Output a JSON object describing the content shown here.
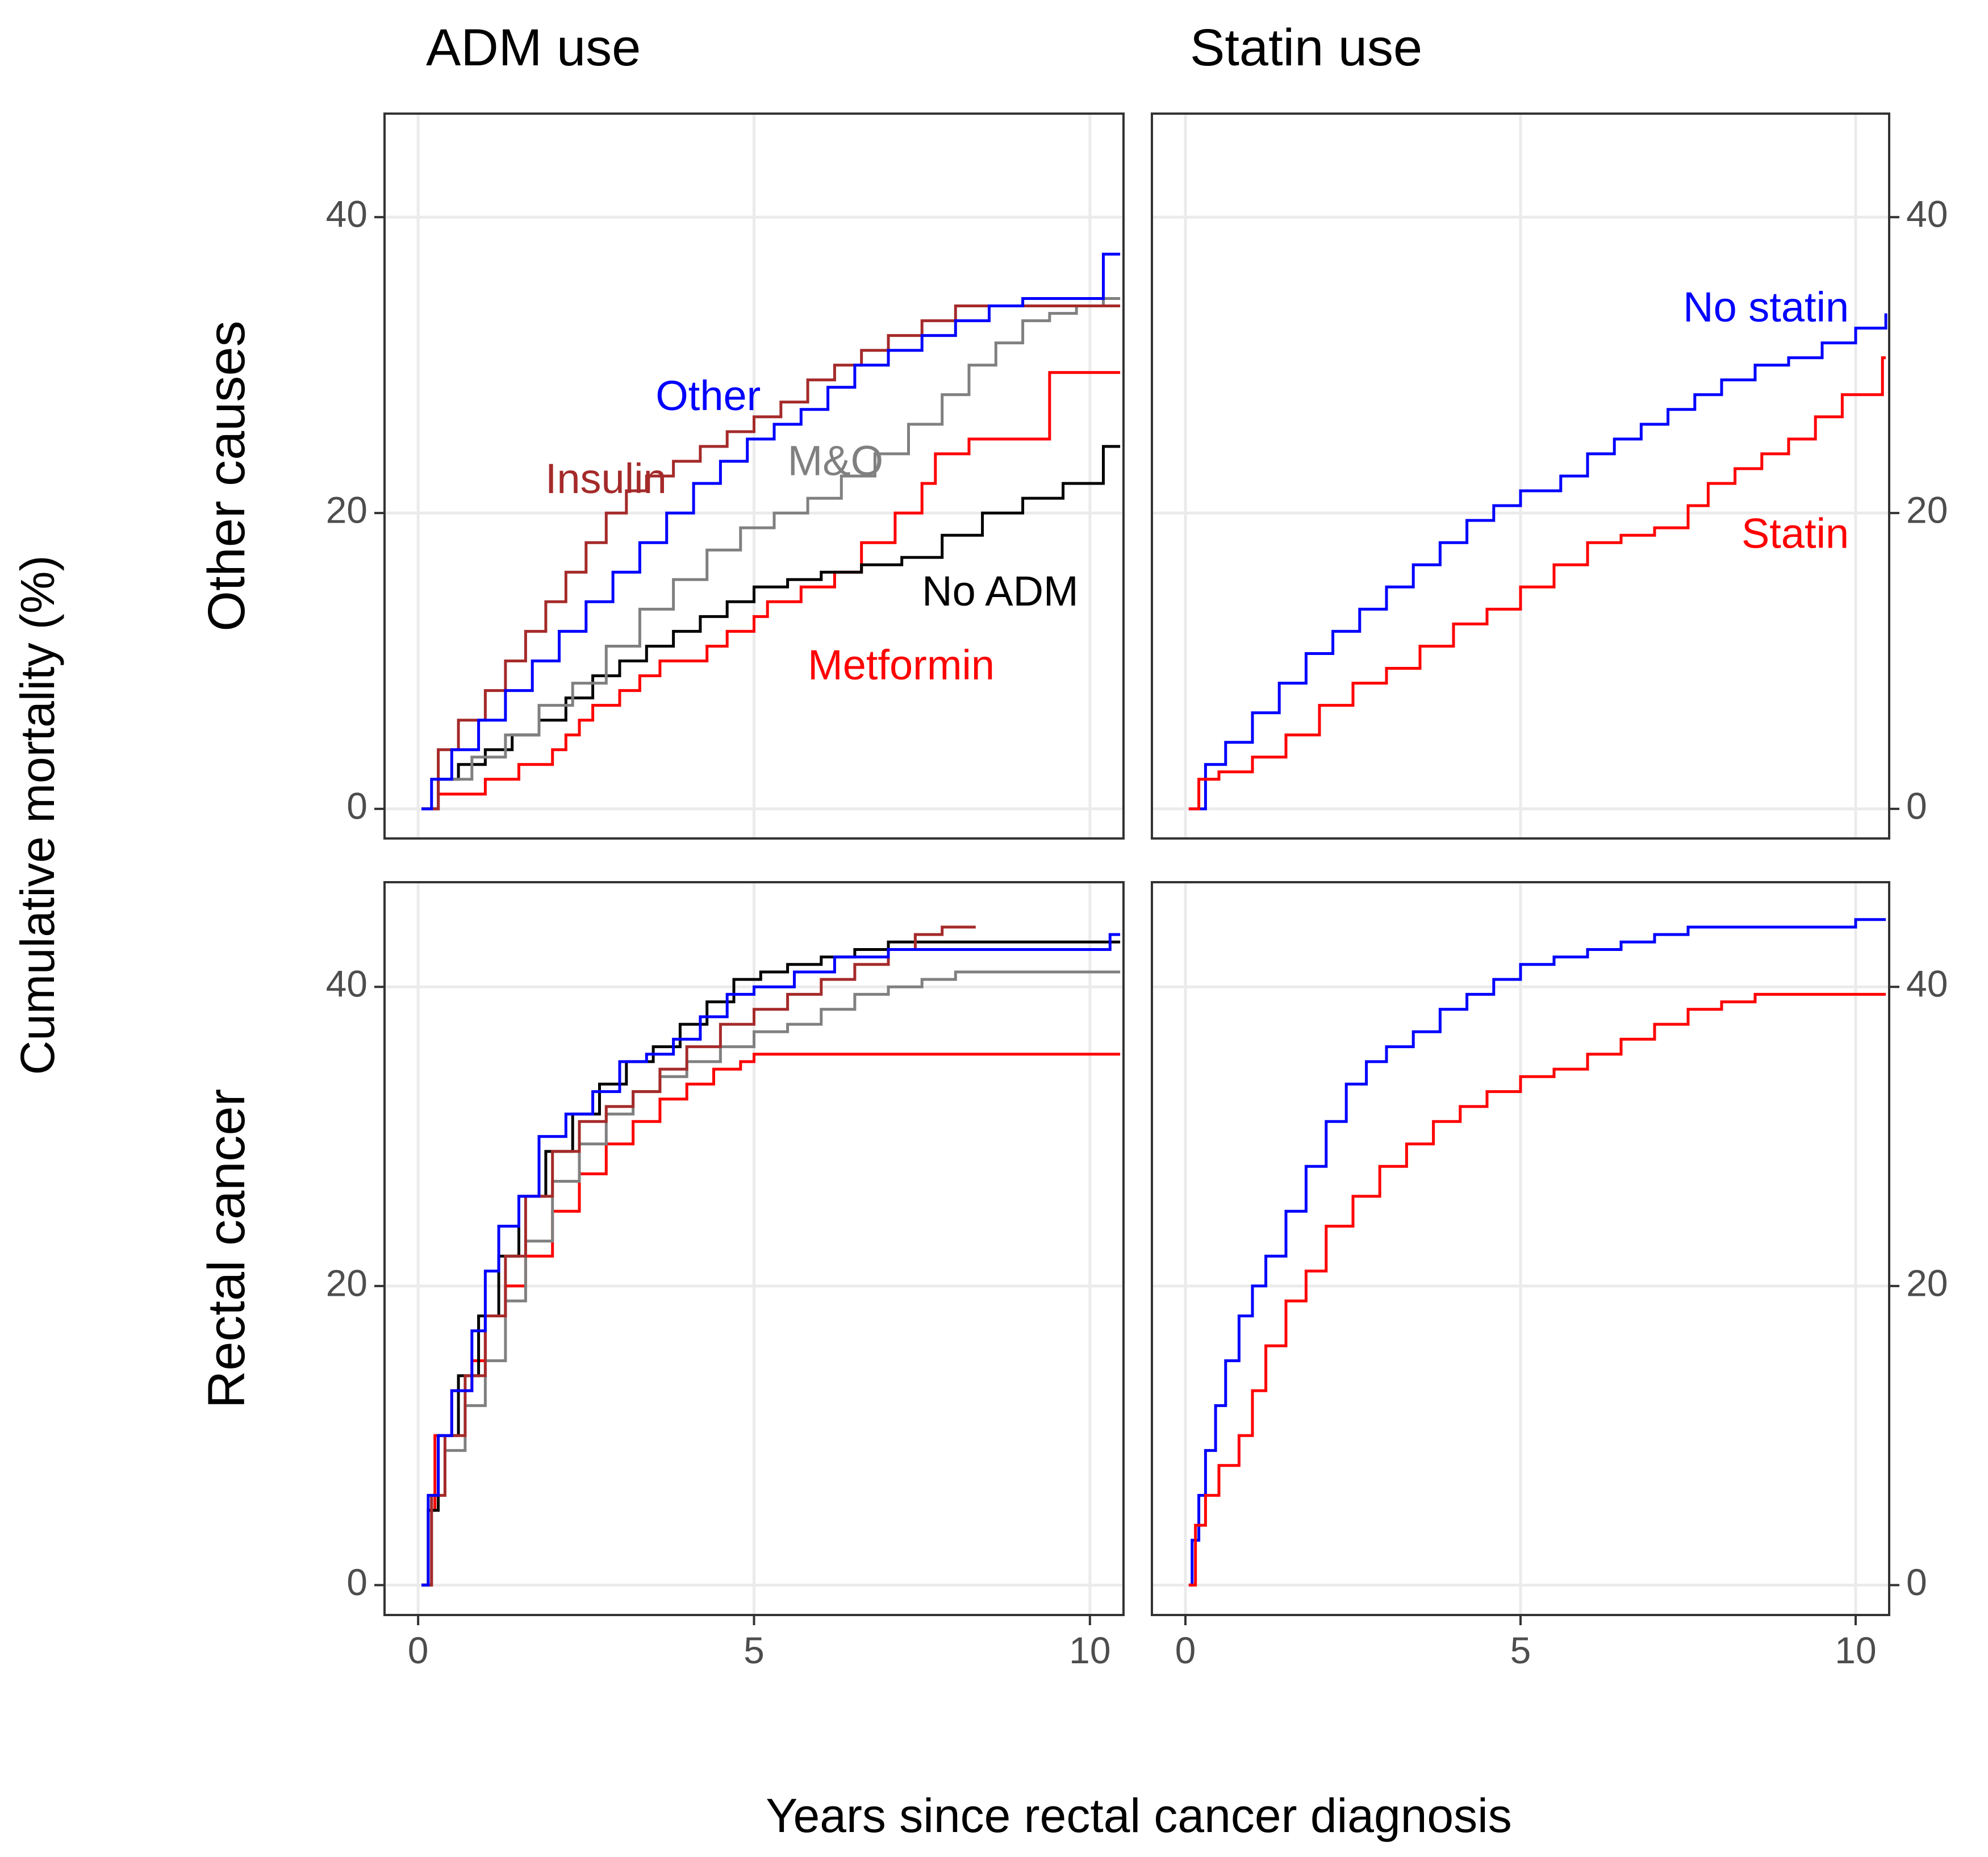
{
  "figure": {
    "ylabel": "Cumulative mortality (%)",
    "xlabel": "Years since rectal cancer diagnosis"
  },
  "chart_data": {
    "type": "line",
    "step": true,
    "columns": [
      "ADM use",
      "Statin use"
    ],
    "rows": [
      "Other causes",
      "Rectal cancer"
    ],
    "xlim": [
      -0.5,
      10.5
    ],
    "ylim": [
      -2,
      47
    ],
    "xticks": [
      0,
      5,
      10
    ],
    "yticks": [
      0,
      20,
      40
    ],
    "colors": {
      "red": "#ff0000",
      "blue": "#0000ff",
      "gray": "#808080",
      "black": "#000000",
      "brown": "#a52a2a",
      "grid": "#ebebeb",
      "frame": "#333333",
      "tick_label": "#4d4d4d"
    },
    "panels": [
      {
        "column": "ADM use",
        "row": "Other causes",
        "series": [
          {
            "name": "Metformin",
            "color": "#ff0000",
            "x": [
              0.05,
              0.3,
              1.0,
              1.5,
              2.0,
              2.2,
              2.4,
              2.6,
              3.0,
              3.3,
              3.6,
              4.3,
              4.6,
              5.0,
              5.2,
              5.7,
              6.2,
              6.6,
              7.1,
              7.5,
              7.7,
              8.2,
              9.4,
              10.45
            ],
            "y": [
              0.0,
              1.0,
              2.0,
              3.0,
              4.0,
              5.0,
              6.0,
              7.0,
              8.0,
              9.0,
              10.0,
              11.0,
              12.0,
              13.0,
              14.0,
              15.0,
              16.0,
              18.0,
              20.0,
              22.0,
              24.0,
              25.0,
              29.5,
              29.5
            ],
            "label": "Metformin"
          },
          {
            "name": "No ADM",
            "color": "#000000",
            "x": [
              0.05,
              0.3,
              0.6,
              1.0,
              1.4,
              1.8,
              2.2,
              2.6,
              3.0,
              3.4,
              3.8,
              4.2,
              4.6,
              5.0,
              5.5,
              6.0,
              6.6,
              7.2,
              7.8,
              8.4,
              9.0,
              9.6,
              10.2,
              10.45
            ],
            "y": [
              0.0,
              2.0,
              3.0,
              4.0,
              5.0,
              6.0,
              7.5,
              9.0,
              10.0,
              11.0,
              12.0,
              13.0,
              14.0,
              15.0,
              15.5,
              16.0,
              16.5,
              17.0,
              18.5,
              20.0,
              21.0,
              22.0,
              24.5,
              24.5
            ],
            "label": "No ADM"
          },
          {
            "name": "M&O",
            "color": "#808080",
            "x": [
              0.05,
              0.3,
              0.8,
              1.3,
              1.8,
              2.3,
              2.8,
              3.3,
              3.8,
              4.3,
              4.8,
              5.3,
              5.8,
              6.3,
              6.8,
              7.3,
              7.8,
              8.2,
              8.6,
              9.0,
              9.4,
              9.8,
              10.2,
              10.45
            ],
            "y": [
              0.0,
              2.0,
              3.5,
              5.0,
              7.0,
              8.5,
              11.0,
              13.5,
              15.5,
              17.5,
              19.0,
              20.0,
              21.0,
              22.5,
              24.0,
              26.0,
              28.0,
              30.0,
              31.5,
              33.0,
              33.5,
              34.0,
              34.5,
              34.5
            ],
            "label": "M&O"
          },
          {
            "name": "Insulin",
            "color": "#a52a2a",
            "x": [
              0.05,
              0.3,
              0.6,
              1.0,
              1.3,
              1.6,
              1.9,
              2.2,
              2.5,
              2.8,
              3.1,
              3.4,
              3.8,
              4.2,
              4.6,
              5.0,
              5.4,
              5.8,
              6.2,
              6.6,
              7.0,
              7.5,
              8.0,
              10.45
            ],
            "y": [
              0.0,
              4.0,
              6.0,
              8.0,
              10.0,
              12.0,
              14.0,
              16.0,
              18.0,
              20.0,
              21.5,
              22.5,
              23.5,
              24.5,
              25.5,
              26.5,
              27.5,
              29.0,
              30.0,
              31.0,
              32.0,
              33.0,
              34.0,
              34.0
            ],
            "label": "Insulin"
          },
          {
            "name": "Other",
            "color": "#0000ff",
            "x": [
              0.05,
              0.2,
              0.5,
              0.9,
              1.3,
              1.7,
              2.1,
              2.5,
              2.9,
              3.3,
              3.7,
              4.1,
              4.5,
              4.9,
              5.3,
              5.7,
              6.1,
              6.5,
              7.0,
              7.5,
              8.0,
              8.5,
              9.0,
              10.2,
              10.45
            ],
            "y": [
              0.0,
              2.0,
              4.0,
              6.0,
              8.0,
              10.0,
              12.0,
              14.0,
              16.0,
              18.0,
              20.0,
              22.0,
              23.5,
              25.0,
              26.0,
              27.0,
              28.5,
              30.0,
              31.0,
              32.0,
              33.0,
              34.0,
              34.5,
              37.5,
              37.5
            ],
            "label": "Other"
          }
        ],
        "labels": [
          {
            "text": "Other",
            "color": "#0000ff",
            "x": 5.1,
            "y": 27.7,
            "anchor": "end"
          },
          {
            "text": "Insulin",
            "color": "#a52a2a",
            "x": 3.7,
            "y": 22.1,
            "anchor": "end"
          },
          {
            "text": "M&O",
            "color": "#808080",
            "x": 5.5,
            "y": 23.3,
            "anchor": "start"
          },
          {
            "text": "No ADM",
            "color": "#000000",
            "x": 7.5,
            "y": 14.5,
            "anchor": "start"
          },
          {
            "text": "Metformin",
            "color": "#ff0000",
            "x": 5.8,
            "y": 9.5,
            "anchor": "start"
          }
        ]
      },
      {
        "column": "Statin use",
        "row": "Other causes",
        "series": [
          {
            "name": "No statin",
            "color": "#0000ff",
            "x": [
              0.05,
              0.3,
              0.6,
              1.0,
              1.4,
              1.8,
              2.2,
              2.6,
              3.0,
              3.4,
              3.8,
              4.2,
              4.6,
              5.0,
              5.6,
              6.0,
              6.4,
              6.8,
              7.2,
              7.6,
              8.0,
              8.5,
              9.0,
              9.5,
              10.0,
              10.45
            ],
            "y": [
              0.0,
              3.0,
              4.5,
              6.5,
              8.5,
              10.5,
              12.0,
              13.5,
              15.0,
              16.5,
              18.0,
              19.5,
              20.5,
              21.5,
              22.5,
              24.0,
              25.0,
              26.0,
              27.0,
              28.0,
              29.0,
              30.0,
              30.5,
              31.5,
              32.5,
              33.5
            ],
            "label": "No statin"
          },
          {
            "name": "Statin",
            "color": "#ff0000",
            "x": [
              0.05,
              0.2,
              0.5,
              1.0,
              1.5,
              2.0,
              2.5,
              3.0,
              3.5,
              4.0,
              4.5,
              5.0,
              5.5,
              6.0,
              6.5,
              7.0,
              7.5,
              7.8,
              8.2,
              8.6,
              9.0,
              9.4,
              9.8,
              10.4,
              10.45
            ],
            "y": [
              0.0,
              2.0,
              2.5,
              3.5,
              5.0,
              7.0,
              8.5,
              9.5,
              11.0,
              12.5,
              13.5,
              15.0,
              16.5,
              18.0,
              18.5,
              19.0,
              20.5,
              22.0,
              23.0,
              24.0,
              25.0,
              26.5,
              28.0,
              30.5,
              30.5
            ],
            "label": "Statin"
          }
        ],
        "labels": [
          {
            "text": "No statin",
            "color": "#0000ff",
            "x": 9.9,
            "y": 33.7,
            "anchor": "end"
          },
          {
            "text": "Statin",
            "color": "#ff0000",
            "x": 9.9,
            "y": 18.4,
            "anchor": "end"
          }
        ]
      },
      {
        "column": "ADM use",
        "row": "Rectal cancer",
        "series": [
          {
            "name": "Metformin",
            "color": "#ff0000",
            "x": [
              0.05,
              0.15,
              0.25,
              0.5,
              0.8,
              1.0,
              1.3,
              1.6,
              2.0,
              2.4,
              2.8,
              3.2,
              3.6,
              4.0,
              4.4,
              4.8,
              5.0,
              10.45
            ],
            "y": [
              0.0,
              5.0,
              10.0,
              13.0,
              15.0,
              18.0,
              20.0,
              22.0,
              25.0,
              27.5,
              29.5,
              31.0,
              32.5,
              33.5,
              34.5,
              35.0,
              35.5,
              35.5
            ]
          },
          {
            "name": "No ADM",
            "color": "#000000",
            "x": [
              0.05,
              0.15,
              0.3,
              0.6,
              0.9,
              1.2,
              1.5,
              1.9,
              2.3,
              2.7,
              3.1,
              3.5,
              3.9,
              4.3,
              4.7,
              5.1,
              5.5,
              6.0,
              6.5,
              7.0,
              7.5,
              10.45
            ],
            "y": [
              0.0,
              5.0,
              10.0,
              14.0,
              18.0,
              22.0,
              26.0,
              29.0,
              31.5,
              33.5,
              35.0,
              36.0,
              37.5,
              39.0,
              40.5,
              41.0,
              41.5,
              42.0,
              42.5,
              43.0,
              43.0,
              43.0
            ]
          },
          {
            "name": "M&O",
            "color": "#808080",
            "x": [
              0.05,
              0.2,
              0.4,
              0.7,
              1.0,
              1.3,
              1.6,
              2.0,
              2.4,
              2.8,
              3.2,
              3.6,
              4.0,
              4.5,
              5.0,
              5.5,
              6.0,
              6.5,
              7.0,
              7.5,
              8.0,
              10.45
            ],
            "y": [
              0.0,
              6.0,
              9.0,
              12.0,
              15.0,
              19.0,
              23.0,
              27.0,
              29.5,
              31.5,
              33.0,
              34.0,
              35.0,
              36.0,
              37.0,
              37.5,
              38.5,
              39.5,
              40.0,
              40.5,
              41.0,
              41.0
            ]
          },
          {
            "name": "Insulin",
            "color": "#a52a2a",
            "x": [
              0.05,
              0.2,
              0.4,
              0.7,
              1.0,
              1.3,
              1.6,
              2.0,
              2.4,
              2.8,
              3.2,
              3.6,
              4.0,
              4.5,
              5.0,
              5.5,
              6.0,
              6.5,
              7.0,
              7.4,
              7.8,
              8.3
            ],
            "y": [
              0.0,
              6.0,
              10.0,
              14.0,
              18.0,
              22.0,
              26.0,
              29.0,
              31.0,
              32.0,
              33.0,
              34.5,
              36.0,
              37.5,
              38.5,
              39.5,
              40.5,
              41.5,
              42.5,
              43.5,
              44.0,
              44.0
            ]
          },
          {
            "name": "Other",
            "color": "#0000ff",
            "x": [
              0.05,
              0.15,
              0.3,
              0.5,
              0.8,
              1.0,
              1.2,
              1.5,
              1.8,
              2.2,
              2.6,
              3.0,
              3.4,
              3.8,
              4.2,
              4.6,
              5.0,
              5.6,
              6.2,
              7.0,
              8.0,
              10.3,
              10.45
            ],
            "y": [
              0.0,
              6.0,
              10.0,
              13.0,
              17.0,
              21.0,
              24.0,
              26.0,
              30.0,
              31.5,
              33.0,
              35.0,
              35.5,
              36.5,
              38.0,
              39.5,
              40.0,
              41.0,
              42.0,
              42.5,
              42.5,
              43.5,
              43.5
            ]
          }
        ],
        "labels": []
      },
      {
        "column": "Statin use",
        "row": "Rectal cancer",
        "series": [
          {
            "name": "No statin",
            "color": "#0000ff",
            "x": [
              0.05,
              0.1,
              0.2,
              0.3,
              0.45,
              0.6,
              0.8,
              1.0,
              1.2,
              1.5,
              1.8,
              2.1,
              2.4,
              2.7,
              3.0,
              3.4,
              3.8,
              4.2,
              4.6,
              5.0,
              5.5,
              6.0,
              6.5,
              7.0,
              7.5,
              8.0,
              9.0,
              10.0,
              10.45
            ],
            "y": [
              0.0,
              3.0,
              6.0,
              9.0,
              12.0,
              15.0,
              18.0,
              20.0,
              22.0,
              25.0,
              28.0,
              31.0,
              33.5,
              35.0,
              36.0,
              37.0,
              38.5,
              39.5,
              40.5,
              41.5,
              42.0,
              42.5,
              43.0,
              43.5,
              44.0,
              44.0,
              44.0,
              44.5,
              44.5
            ]
          },
          {
            "name": "Statin",
            "color": "#ff0000",
            "x": [
              0.05,
              0.15,
              0.3,
              0.5,
              0.8,
              1.0,
              1.2,
              1.5,
              1.8,
              2.1,
              2.5,
              2.9,
              3.3,
              3.7,
              4.1,
              4.5,
              5.0,
              5.5,
              6.0,
              6.5,
              7.0,
              7.5,
              8.0,
              8.5,
              10.45
            ],
            "y": [
              0.0,
              4.0,
              6.0,
              8.0,
              10.0,
              13.0,
              16.0,
              19.0,
              21.0,
              24.0,
              26.0,
              28.0,
              29.5,
              31.0,
              32.0,
              33.0,
              34.0,
              34.5,
              35.5,
              36.5,
              37.5,
              38.5,
              39.0,
              39.5,
              39.5
            ]
          }
        ],
        "labels": []
      }
    ]
  }
}
